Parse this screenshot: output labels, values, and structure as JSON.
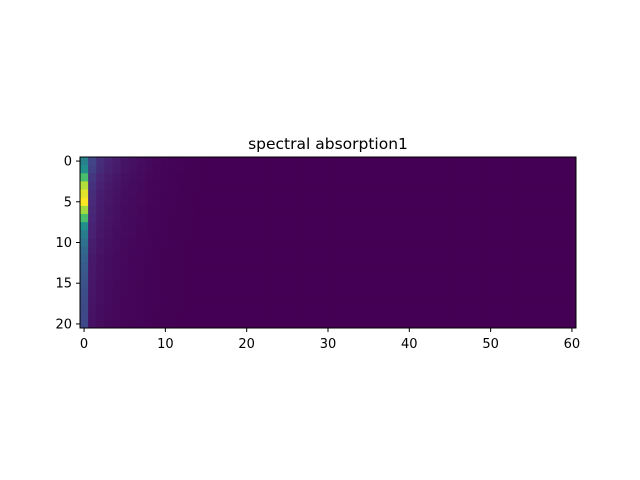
{
  "chart_data": {
    "type": "heatmap",
    "title": "spectral absorption1",
    "xlabel": "",
    "ylabel": "",
    "colormap": "viridis",
    "n_rows": 21,
    "n_cols": 61,
    "xlim": [
      -0.5,
      60.5
    ],
    "ylim": [
      20.5,
      -0.5
    ],
    "x_ticks": [
      0,
      10,
      20,
      30,
      40,
      50,
      60
    ],
    "y_ticks": [
      0,
      5,
      10,
      15,
      20
    ],
    "value_range": [
      0,
      1
    ],
    "column_profile": [
      1.0,
      0.18,
      0.12,
      0.09,
      0.07,
      0.05,
      0.04,
      0.03,
      0.02,
      0.015,
      0.01,
      0.007,
      0.005,
      0.003,
      0.002,
      0.001
    ],
    "row_profile": [
      0.55,
      0.62,
      0.78,
      0.92,
      0.97,
      1.0,
      0.9,
      0.78,
      0.62,
      0.52,
      0.46,
      0.42,
      0.39,
      0.36,
      0.34,
      0.32,
      0.3,
      0.29,
      0.28,
      0.27,
      0.27
    ],
    "row_tail_boost": [
      1.4,
      1.3,
      1.1,
      1.0,
      0.9,
      0.85,
      0.8,
      0.75,
      0.7,
      0.65,
      0.6,
      0.55,
      0.5,
      0.48,
      0.46,
      0.44,
      0.42,
      0.4,
      0.38,
      0.36,
      0.34
    ]
  }
}
